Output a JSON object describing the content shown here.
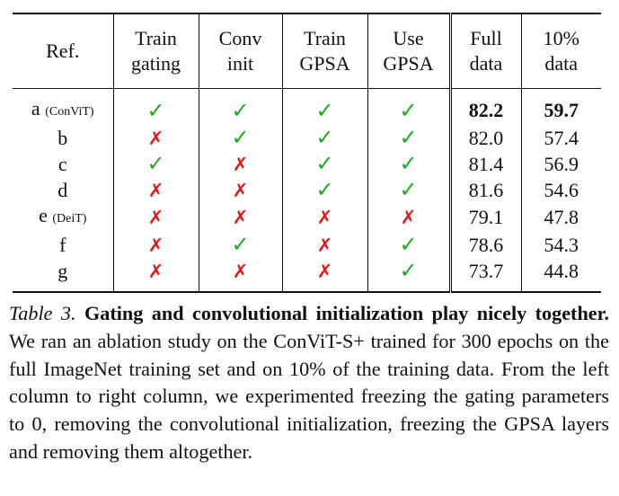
{
  "table": {
    "headers": {
      "ref": "Ref.",
      "train_gating": [
        "Train",
        "gating"
      ],
      "conv_init": [
        "Conv",
        "init"
      ],
      "train_gpsa": [
        "Train",
        "GPSA"
      ],
      "use_gpsa": [
        "Use",
        "GPSA"
      ],
      "full_data": [
        "Full",
        "data"
      ],
      "ten_pct_data": [
        "10%",
        "data"
      ]
    },
    "rows": [
      {
        "ref": "a",
        "ref_note": "(ConViT)",
        "tg": "✓",
        "ci": "✓",
        "tgp": "✓",
        "ug": "✓",
        "full": "82.2",
        "ten": "59.7"
      },
      {
        "ref": "b",
        "ref_note": "",
        "tg": "✗",
        "ci": "✓",
        "tgp": "✓",
        "ug": "✓",
        "full": "82.0",
        "ten": "57.4"
      },
      {
        "ref": "c",
        "ref_note": "",
        "tg": "✓",
        "ci": "✗",
        "tgp": "✓",
        "ug": "✓",
        "full": "81.4",
        "ten": "56.9"
      },
      {
        "ref": "d",
        "ref_note": "",
        "tg": "✗",
        "ci": "✗",
        "tgp": "✓",
        "ug": "✓",
        "full": "81.6",
        "ten": "54.6"
      },
      {
        "ref": "e",
        "ref_note": "(DeiT)",
        "tg": "✗",
        "ci": "✗",
        "tgp": "✗",
        "ug": "✗",
        "full": "79.1",
        "ten": "47.8"
      },
      {
        "ref": "f",
        "ref_note": "",
        "tg": "✗",
        "ci": "✓",
        "tgp": "✗",
        "ug": "✓",
        "full": "78.6",
        "ten": "54.3"
      },
      {
        "ref": "g",
        "ref_note": "",
        "tg": "✗",
        "ci": "✗",
        "tgp": "✗",
        "ug": "✓",
        "full": "73.7",
        "ten": "44.8"
      }
    ],
    "colors": {
      "check": "#1faa1f",
      "cross": "#dd1a1a"
    }
  },
  "caption": {
    "label": "Table 3.",
    "title": "Gating and convolutional initialization play nicely together.",
    "body": "We ran an ablation study on the ConViT-S+ trained for 300 epochs on the full ImageNet training set and on 10% of the training data. From the left column to right column, we experimented freezing the gating parameters to 0, removing the convolutional initialization, freezing the GPSA layers and removing them altogether."
  }
}
